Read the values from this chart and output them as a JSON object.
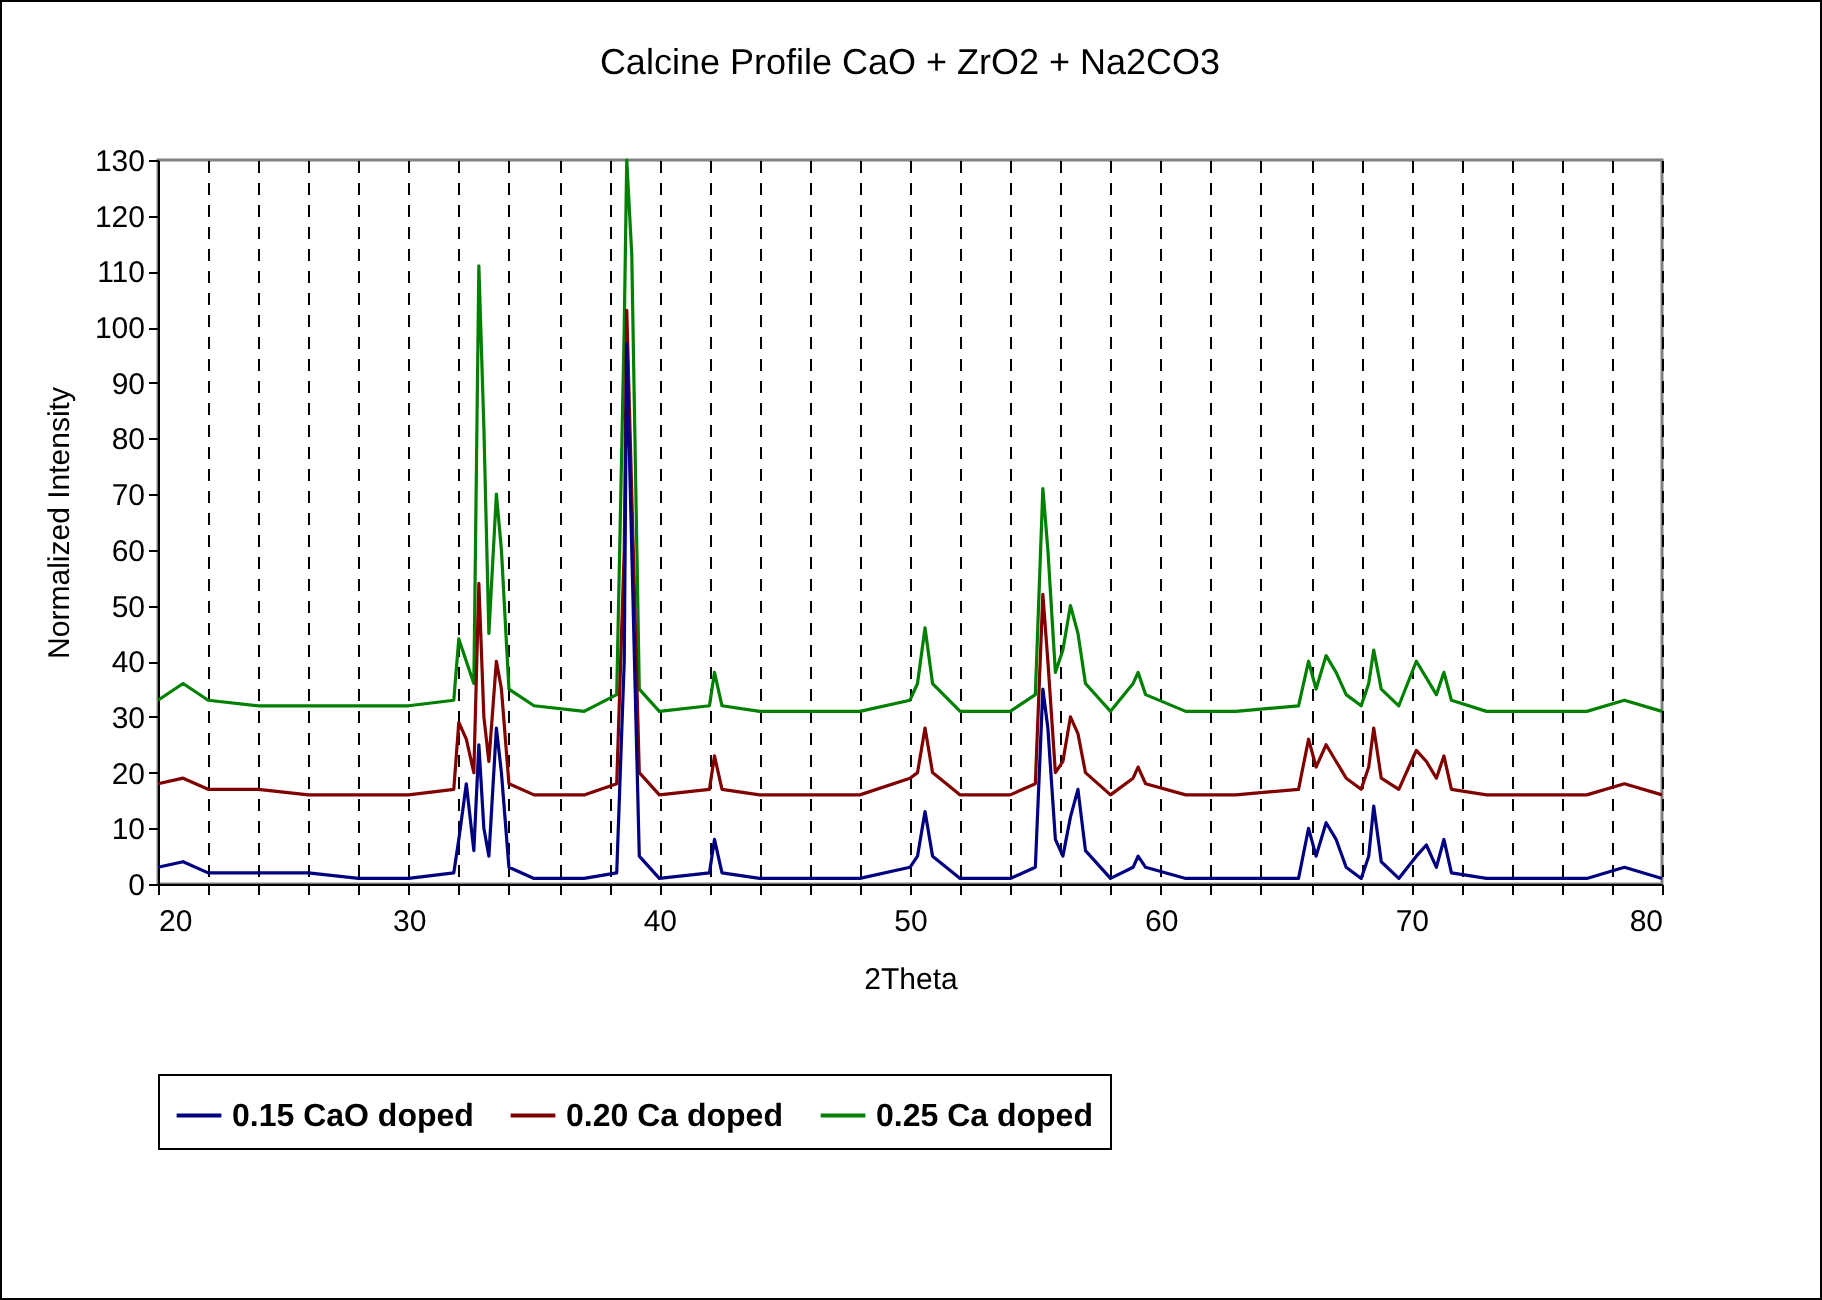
{
  "chart_data": {
    "type": "line",
    "title": "Calcine Profile CaO + ZrO2 + Na2CO3",
    "xlabel": "2Theta",
    "ylabel": "Normalized Intensity",
    "x": [
      20,
      21,
      22,
      24,
      26,
      28,
      30,
      31.8,
      32.0,
      32.3,
      32.6,
      32.8,
      33.0,
      33.2,
      33.5,
      33.7,
      34.0,
      35,
      37,
      38.3,
      38.6,
      38.7,
      38.9,
      39.2,
      40,
      42.0,
      42.2,
      42.5,
      44,
      46,
      48,
      50.0,
      50.3,
      50.6,
      50.9,
      52,
      54,
      55.0,
      55.3,
      55.5,
      55.8,
      56.1,
      56.4,
      56.7,
      57.0,
      58,
      58.9,
      59.1,
      59.4,
      61,
      63,
      65.5,
      65.9,
      66.2,
      66.6,
      67.0,
      67.4,
      68.0,
      68.3,
      68.5,
      68.8,
      69.5,
      70.2,
      70.6,
      71.0,
      71.3,
      71.6,
      73,
      75,
      77,
      78.5,
      80
    ],
    "series": [
      {
        "name": "0.15 CaO doped",
        "color": "#000080",
        "values": [
          3,
          4,
          2,
          2,
          2,
          1,
          1,
          2,
          8,
          18,
          6,
          25,
          10,
          5,
          28,
          20,
          3,
          1,
          1,
          2,
          40,
          97,
          60,
          5,
          1,
          2,
          8,
          2,
          1,
          1,
          1,
          3,
          5,
          13,
          5,
          1,
          1,
          3,
          35,
          28,
          8,
          5,
          12,
          17,
          6,
          1,
          3,
          5,
          3,
          1,
          1,
          1,
          10,
          5,
          11,
          8,
          3,
          1,
          5,
          14,
          4,
          1,
          5,
          7,
          3,
          8,
          2,
          1,
          1,
          1,
          3,
          1
        ]
      },
      {
        "name": "0.20 Ca doped",
        "color": "#800000",
        "values": [
          18,
          19,
          17,
          17,
          16,
          16,
          16,
          17,
          29,
          26,
          20,
          54,
          30,
          22,
          40,
          35,
          18,
          16,
          16,
          18,
          60,
          103,
          70,
          20,
          16,
          17,
          23,
          17,
          16,
          16,
          16,
          19,
          20,
          28,
          20,
          16,
          16,
          18,
          52,
          40,
          20,
          22,
          30,
          27,
          20,
          16,
          19,
          21,
          18,
          16,
          16,
          17,
          26,
          21,
          25,
          22,
          19,
          17,
          21,
          28,
          19,
          17,
          24,
          22,
          19,
          23,
          17,
          16,
          16,
          16,
          18,
          16
        ]
      },
      {
        "name": "0.25 Ca doped",
        "color": "#008000",
        "values": [
          33,
          36,
          33,
          32,
          32,
          32,
          32,
          33,
          44,
          40,
          36,
          111,
          82,
          45,
          70,
          60,
          35,
          32,
          31,
          34,
          100,
          130,
          113,
          35,
          31,
          32,
          38,
          32,
          31,
          31,
          31,
          33,
          36,
          46,
          36,
          31,
          31,
          34,
          71,
          60,
          38,
          42,
          50,
          45,
          36,
          31,
          36,
          38,
          34,
          31,
          31,
          32,
          40,
          35,
          41,
          38,
          34,
          32,
          36,
          42,
          35,
          32,
          40,
          37,
          34,
          38,
          33,
          31,
          31,
          31,
          33,
          31
        ]
      }
    ],
    "xlim": [
      20,
      80
    ],
    "ylim": [
      0,
      130
    ],
    "xticks": [
      20,
      {
        "value": 22,
        "label": null
      },
      {
        "value": 24,
        "label": null
      },
      {
        "value": 26,
        "label": null
      },
      {
        "value": 28,
        "label": null
      },
      30,
      {
        "value": 32,
        "label": null
      },
      {
        "value": 34,
        "label": null
      },
      {
        "value": 36,
        "label": null
      },
      {
        "value": 38,
        "label": null
      },
      40,
      {
        "value": 42,
        "label": null
      },
      {
        "value": 44,
        "label": null
      },
      {
        "value": 46,
        "label": null
      },
      {
        "value": 48,
        "label": null
      },
      50,
      {
        "value": 52,
        "label": null
      },
      {
        "value": 54,
        "label": null
      },
      {
        "value": 56,
        "label": null
      },
      {
        "value": 58,
        "label": null
      },
      60,
      {
        "value": 62,
        "label": null
      },
      {
        "value": 64,
        "label": null
      },
      {
        "value": 66,
        "label": null
      },
      {
        "value": 68,
        "label": null
      },
      70,
      {
        "value": 72,
        "label": null
      },
      {
        "value": 74,
        "label": null
      },
      {
        "value": 76,
        "label": null
      },
      {
        "value": 78,
        "label": null
      },
      80
    ],
    "yticks": [
      0,
      10,
      20,
      30,
      40,
      50,
      60,
      70,
      80,
      90,
      100,
      110,
      120,
      130
    ],
    "grid": "x",
    "legend": "bottom",
    "line_style": "solid",
    "marker": "none"
  }
}
